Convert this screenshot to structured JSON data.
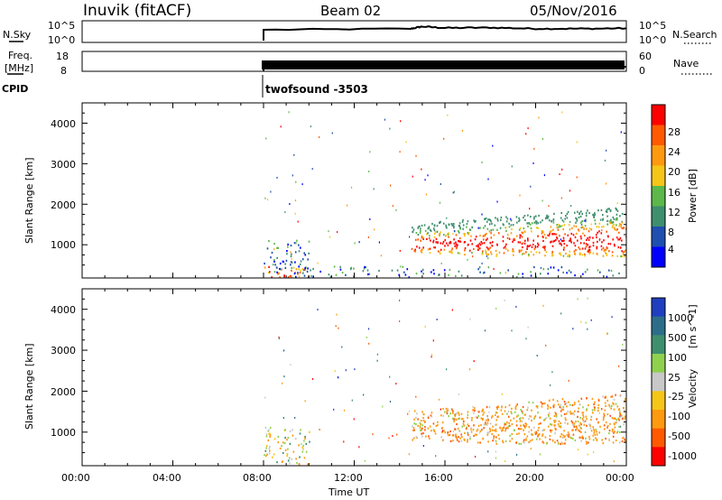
{
  "header": {
    "station": "Inuvik (fitACF)",
    "beam": "Beam 02",
    "date": "05/Nov/2016"
  },
  "top_panels": {
    "nsky": {
      "label": "N.Sky",
      "ticks": [
        "10^5",
        "10^0"
      ]
    },
    "nsearch": {
      "label": "N.Search",
      "ticks": [
        "10^5",
        "10^0"
      ]
    },
    "freq": {
      "label_line1": "Freq.",
      "label_line2": "[MHz]",
      "ticks": [
        "18",
        "8"
      ]
    },
    "nave": {
      "label": "Nave",
      "ticks": [
        "60",
        "0"
      ]
    },
    "cpid": {
      "label": "CPID",
      "value": "twofsound -3503"
    }
  },
  "colors": {
    "power_scale": [
      "#0000ff",
      "#1f4fb0",
      "#3e8f6e",
      "#5cb84a",
      "#f5c518",
      "#ff9a10",
      "#ff5a00",
      "#ff0000"
    ],
    "velocity_scale": [
      "#ff0000",
      "#ff5a00",
      "#ff9a10",
      "#f5c518",
      "#c8c8c8",
      "#8fd14f",
      "#3e8f6e",
      "#2c6e8a",
      "#1f3fc0"
    ]
  },
  "power_colorbar": {
    "label": "Power [dB]",
    "ticks": [
      "28",
      "24",
      "20",
      "16",
      "12",
      "8",
      "4"
    ]
  },
  "velocity_colorbar": {
    "label": "Velocity",
    "unit": "[m s^-1]",
    "ticks": [
      "1000",
      "500",
      "100",
      "25",
      "-25",
      "-100",
      "-500",
      "-1000"
    ]
  },
  "axes": {
    "ylabel": "Slant Range [km]",
    "xlabel": "Time UT",
    "y_ticks": [
      "4000",
      "3000",
      "2000",
      "1000"
    ],
    "x_ticks": [
      "00:00",
      "04:00",
      "08:00",
      "12:00",
      "16:00",
      "20:00",
      "00:00"
    ]
  },
  "chart_data": [
    {
      "type": "heatmap",
      "title": "Power",
      "xlabel": "Time UT",
      "ylabel": "Slant Range [km]",
      "xlim": [
        0,
        24
      ],
      "ylim": [
        180,
        4500
      ],
      "colorbar_range_dB": [
        0,
        32
      ],
      "data_onset_hour": 8,
      "regions": [
        {
          "t_start": 8.0,
          "t_end": 10.0,
          "r_start": 180,
          "r_end": 1100,
          "level": "low-high mixed"
        },
        {
          "t_start": 8.0,
          "t_end": 24.0,
          "r_start": 180,
          "r_end": 450,
          "level": "low"
        },
        {
          "t_start": 14.5,
          "t_end": 24.0,
          "r_start": 700,
          "r_end": 2100,
          "level": "high (up to 28+ dB)"
        }
      ]
    },
    {
      "type": "heatmap",
      "title": "Velocity",
      "xlabel": "Time UT",
      "ylabel": "Slant Range [km]",
      "xlim": [
        0,
        24
      ],
      "ylim": [
        180,
        4500
      ],
      "colorbar_range_ms": [
        -1000,
        1000
      ],
      "data_onset_hour": 8,
      "regions": [
        {
          "t_start": 8.0,
          "t_end": 10.0,
          "r_start": 180,
          "r_end": 1100,
          "level": "mixed"
        },
        {
          "t_start": 14.5,
          "t_end": 24.0,
          "r_start": 700,
          "r_end": 2100,
          "level": "negative (-100 to -500)"
        }
      ]
    },
    {
      "type": "line",
      "title": "N.Sky",
      "xlim": [
        0,
        24
      ],
      "series": [
        {
          "values": [
            [
              8.0,
              3.0
            ],
            [
              14.5,
              3.3
            ],
            [
              15.0,
              3.9
            ],
            [
              16.0,
              3.5
            ],
            [
              18.0,
              3.6
            ],
            [
              20.0,
              3.3
            ],
            [
              22.0,
              3.3
            ],
            [
              24.0,
              3.4
            ]
          ]
        }
      ]
    },
    {
      "type": "line",
      "title": "Freq.",
      "xlim": [
        0,
        24
      ],
      "ylim": [
        8,
        18
      ],
      "series": [
        {
          "values": [
            [
              8.0,
              10.5
            ],
            [
              24.0,
              10.5
            ]
          ]
        }
      ]
    }
  ]
}
